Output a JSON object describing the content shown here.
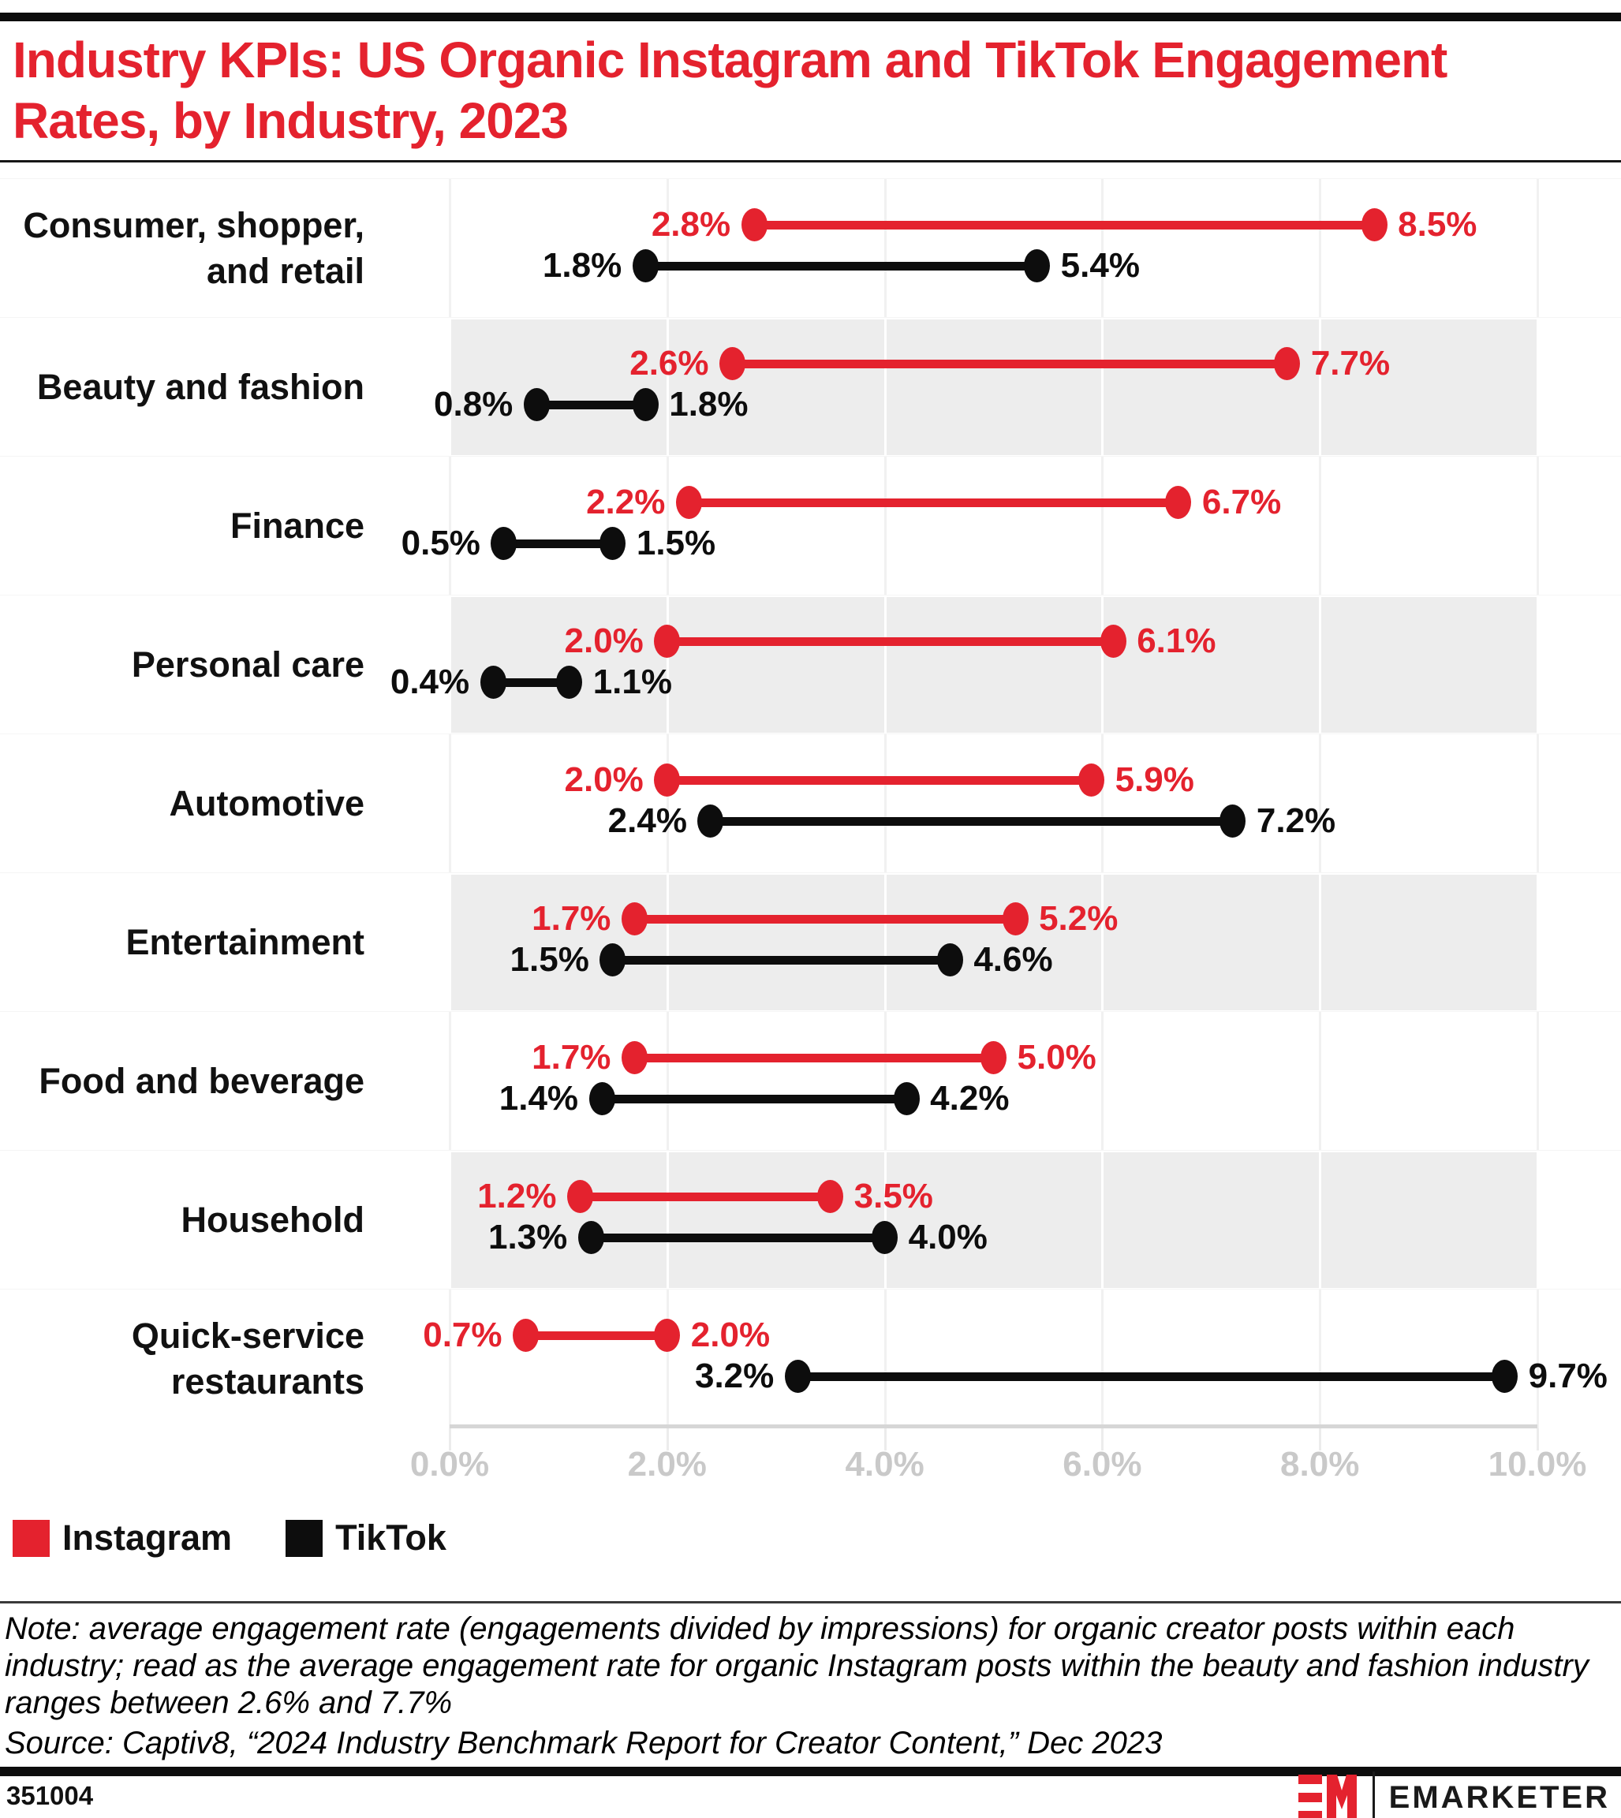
{
  "title": {
    "line1": "Industry KPIs: US Organic Instagram and TikTok Engagement",
    "line2": "Rates, by Industry, 2023"
  },
  "colors": {
    "instagram": "#e4222e",
    "tiktok": "#0d0d0d",
    "stripe": "#ededed",
    "grid_on_white": "#f1f1f1",
    "grid_on_stripe": "#ffffff"
  },
  "chart_data": {
    "type": "dumbbell",
    "unit": "%",
    "x_axis": {
      "min": 0,
      "max": 10,
      "ticks": [
        {
          "value": 0,
          "label": "0.0%"
        },
        {
          "value": 2,
          "label": "2.0%"
        },
        {
          "value": 4,
          "label": "4.0%"
        },
        {
          "value": 6,
          "label": "6.0%"
        },
        {
          "value": 8,
          "label": "8.0%"
        },
        {
          "value": 10,
          "label": "10.0%"
        }
      ]
    },
    "series": [
      "Instagram",
      "TikTok"
    ],
    "industries": [
      {
        "label": "Consumer, shopper, and retail",
        "label_lines": [
          "Consumer, shopper,",
          "and retail"
        ],
        "instagram": {
          "low": 2.8,
          "high": 8.5
        },
        "tiktok": {
          "low": 1.8,
          "high": 5.4
        }
      },
      {
        "label": "Beauty and fashion",
        "label_lines": [
          "Beauty and fashion"
        ],
        "instagram": {
          "low": 2.6,
          "high": 7.7
        },
        "tiktok": {
          "low": 0.8,
          "high": 1.8
        }
      },
      {
        "label": "Finance",
        "label_lines": [
          "Finance"
        ],
        "instagram": {
          "low": 2.2,
          "high": 6.7
        },
        "tiktok": {
          "low": 0.5,
          "high": 1.5
        }
      },
      {
        "label": "Personal care",
        "label_lines": [
          "Personal care"
        ],
        "instagram": {
          "low": 2.0,
          "high": 6.1
        },
        "tiktok": {
          "low": 0.4,
          "high": 1.1
        }
      },
      {
        "label": "Automotive",
        "label_lines": [
          "Automotive"
        ],
        "instagram": {
          "low": 2.0,
          "high": 5.9
        },
        "tiktok": {
          "low": 2.4,
          "high": 7.2
        }
      },
      {
        "label": "Entertainment",
        "label_lines": [
          "Entertainment"
        ],
        "instagram": {
          "low": 1.7,
          "high": 5.2
        },
        "tiktok": {
          "low": 1.5,
          "high": 4.6
        }
      },
      {
        "label": "Food and beverage",
        "label_lines": [
          "Food and beverage"
        ],
        "instagram": {
          "low": 1.7,
          "high": 5.0
        },
        "tiktok": {
          "low": 1.4,
          "high": 4.2
        }
      },
      {
        "label": "Household",
        "label_lines": [
          "Household"
        ],
        "instagram": {
          "low": 1.2,
          "high": 3.5
        },
        "tiktok": {
          "low": 1.3,
          "high": 4.0
        }
      },
      {
        "label": "Quick-service restaurants",
        "label_lines": [
          "Quick-service",
          "restaurants"
        ],
        "instagram": {
          "low": 0.7,
          "high": 2.0
        },
        "tiktok": {
          "low": 3.2,
          "high": 9.7
        }
      }
    ]
  },
  "legend": [
    {
      "label": "Instagram",
      "color": "#e4222e"
    },
    {
      "label": "TikTok",
      "color": "#0d0d0d"
    }
  ],
  "note": "Note: average engagement rate (engagements divided by impressions) for organic creator posts within each industry; read as the average engagement rate for organic Instagram posts within the beauty and fashion industry ranges between 2.6% and 7.7%",
  "source": "Source: Captiv8, “2024 Industry Benchmark Report for Creator Content,” Dec 2023",
  "footer": {
    "chart_id": "351004",
    "brand": "EMARKETER"
  }
}
